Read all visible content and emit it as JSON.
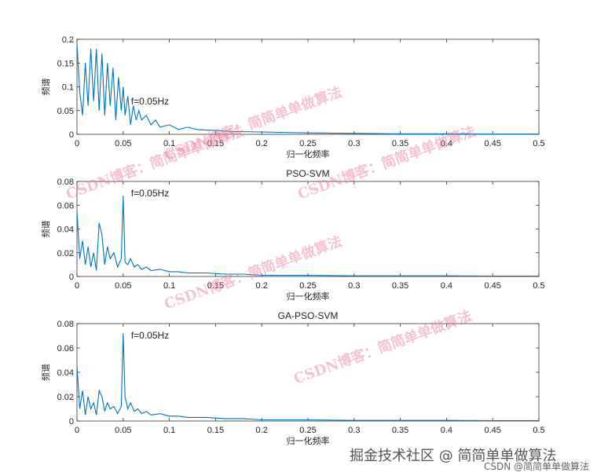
{
  "chart_data": [
    {
      "type": "line",
      "title": "",
      "xlabel": "归一化频率",
      "ylabel": "频谱",
      "xlim": [
        0,
        0.5
      ],
      "ylim": [
        0,
        0.2
      ],
      "xticks": [
        "0",
        "0.05",
        "0.1",
        "0.15",
        "0.2",
        "0.25",
        "0.3",
        "0.35",
        "0.4",
        "0.45",
        "0.5"
      ],
      "yticks": [
        "0",
        "0.05",
        "0.1",
        "0.15",
        "0.2"
      ],
      "annotation": "f=0.05Hz",
      "color": "#0072BD",
      "series": [
        {
          "x": [
            0,
            0.003,
            0.006,
            0.009,
            0.012,
            0.015,
            0.018,
            0.021,
            0.024,
            0.027,
            0.03,
            0.033,
            0.036,
            0.039,
            0.042,
            0.045,
            0.048,
            0.05,
            0.052,
            0.055,
            0.058,
            0.061,
            0.064,
            0.067,
            0.07,
            0.075,
            0.08,
            0.085,
            0.09,
            0.1,
            0.11,
            0.12,
            0.13,
            0.15,
            0.17,
            0.2,
            0.25,
            0.3,
            0.35,
            0.4,
            0.45,
            0.5
          ],
          "y": [
            0.19,
            0.09,
            0.04,
            0.15,
            0.06,
            0.18,
            0.07,
            0.18,
            0.05,
            0.17,
            0.04,
            0.15,
            0.06,
            0.14,
            0.03,
            0.12,
            0.05,
            0.1,
            0.04,
            0.08,
            0.02,
            0.06,
            0.03,
            0.05,
            0.03,
            0.04,
            0.02,
            0.03,
            0.015,
            0.02,
            0.01,
            0.015,
            0.01,
            0.008,
            0.006,
            0.005,
            0.003,
            0.002,
            0.001,
            0.001,
            0.0005,
            0.0005
          ]
        }
      ]
    },
    {
      "type": "line",
      "title": "PSO-SVM",
      "xlabel": "归一化频率",
      "ylabel": "频谱",
      "xlim": [
        0,
        0.5
      ],
      "ylim": [
        0,
        0.08
      ],
      "xticks": [
        "0",
        "0.05",
        "0.1",
        "0.15",
        "0.2",
        "0.25",
        "0.3",
        "0.35",
        "0.4",
        "0.45",
        "0.5"
      ],
      "yticks": [
        "0",
        "0.02",
        "0.04",
        "0.06",
        "0.08"
      ],
      "annotation": "f=0.05Hz",
      "color": "#0072BD",
      "series": [
        {
          "x": [
            0,
            0.003,
            0.006,
            0.009,
            0.012,
            0.015,
            0.018,
            0.021,
            0.024,
            0.027,
            0.03,
            0.033,
            0.036,
            0.04,
            0.044,
            0.048,
            0.05,
            0.052,
            0.055,
            0.058,
            0.062,
            0.066,
            0.07,
            0.075,
            0.08,
            0.09,
            0.1,
            0.11,
            0.12,
            0.14,
            0.16,
            0.18,
            0.2,
            0.25,
            0.3,
            0.35,
            0.4,
            0.45,
            0.5
          ],
          "y": [
            0.055,
            0.015,
            0.03,
            0.01,
            0.025,
            0.008,
            0.02,
            0.005,
            0.045,
            0.035,
            0.01,
            0.025,
            0.015,
            0.02,
            0.008,
            0.015,
            0.068,
            0.012,
            0.01,
            0.015,
            0.008,
            0.01,
            0.006,
            0.008,
            0.005,
            0.006,
            0.004,
            0.004,
            0.003,
            0.003,
            0.002,
            0.002,
            0.001,
            0.001,
            0.0005,
            0.0005,
            0.0005,
            0.0003,
            0.0003
          ]
        }
      ]
    },
    {
      "type": "line",
      "title": "GA-PSO-SVM",
      "xlabel": "归一化频率",
      "ylabel": "频谱",
      "xlim": [
        0,
        0.5
      ],
      "ylim": [
        0,
        0.08
      ],
      "xticks": [
        "0",
        "0.05",
        "0.1",
        "0.15",
        "0.2",
        "0.25",
        "0.3",
        "0.35",
        "0.4",
        "0.45",
        "0.5"
      ],
      "yticks": [
        "0",
        "0.02",
        "0.04",
        "0.06",
        "0.08"
      ],
      "annotation": "f=0.05Hz",
      "color": "#0072BD",
      "series": [
        {
          "x": [
            0,
            0.003,
            0.006,
            0.009,
            0.012,
            0.015,
            0.018,
            0.021,
            0.024,
            0.027,
            0.03,
            0.033,
            0.036,
            0.04,
            0.044,
            0.048,
            0.05,
            0.052,
            0.055,
            0.058,
            0.062,
            0.066,
            0.07,
            0.075,
            0.08,
            0.09,
            0.1,
            0.11,
            0.12,
            0.14,
            0.16,
            0.18,
            0.2,
            0.25,
            0.3,
            0.35,
            0.4,
            0.45,
            0.5
          ],
          "y": [
            0.045,
            0.01,
            0.025,
            0.005,
            0.02,
            0.01,
            0.015,
            0.005,
            0.025,
            0.02,
            0.008,
            0.015,
            0.01,
            0.012,
            0.006,
            0.012,
            0.072,
            0.02,
            0.01,
            0.015,
            0.008,
            0.01,
            0.006,
            0.008,
            0.005,
            0.006,
            0.004,
            0.004,
            0.003,
            0.003,
            0.002,
            0.002,
            0.001,
            0.001,
            0.0005,
            0.0005,
            0.0005,
            0.0003,
            0.0003
          ]
        }
      ]
    }
  ],
  "watermarks": {
    "diagonal": "CSDN博客：简简单单做算法",
    "community": "掘金技术社区 @ 简简单单做算法",
    "csdn": "CSDN @简简单单做算法"
  }
}
